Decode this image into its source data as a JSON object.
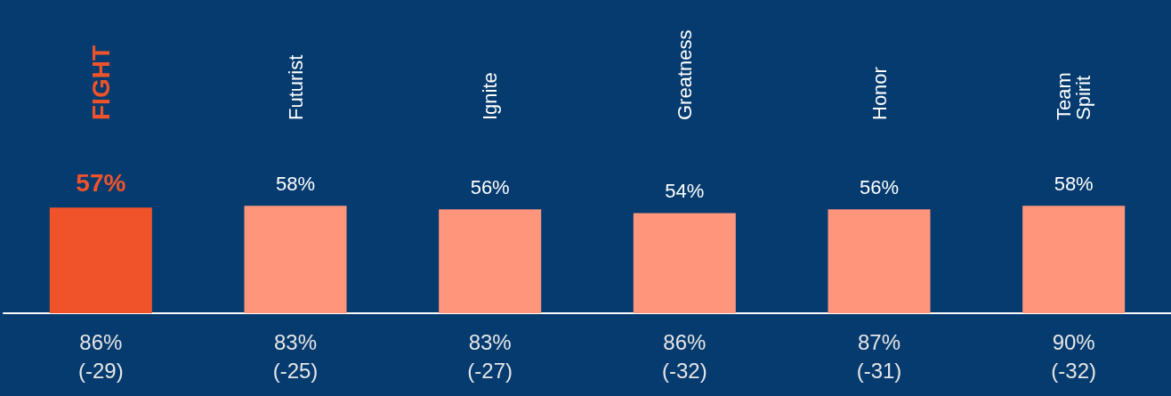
{
  "chart_data": {
    "type": "bar",
    "categories": [
      "FIGHT",
      "Futurist",
      "Ignite",
      "Greatness",
      "Honor",
      "Team Spirit"
    ],
    "values": [
      57,
      58,
      56,
      54,
      56,
      58
    ],
    "colors": [
      "#f0532a",
      "#ff967c",
      "#ff967c",
      "#ff967c",
      "#ff967c",
      "#ff967c"
    ],
    "value_labels": [
      "57%",
      "58%",
      "56%",
      "54%",
      "56%",
      "58%"
    ],
    "annotations": [
      "86%\n(-29)",
      "83%\n(-25)",
      "83%\n(-27)",
      "86%\n(-32)",
      "87%\n(-31)",
      "90%\n(-32)"
    ]
  }
}
